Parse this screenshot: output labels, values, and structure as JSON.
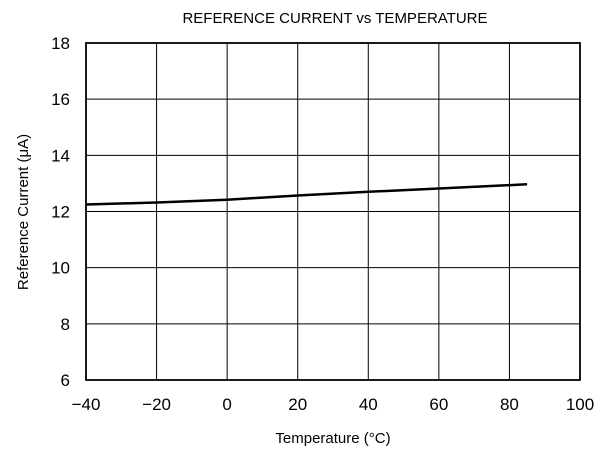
{
  "chart_data": {
    "type": "line",
    "title": "REFERENCE CURRENT vs TEMPERATURE",
    "xlabel": "Temperature (°C)",
    "ylabel": "Reference Current (μA)",
    "xlim": [
      -40,
      100
    ],
    "ylim": [
      6,
      18
    ],
    "xticks": [
      -40,
      -20,
      0,
      20,
      40,
      60,
      80,
      100
    ],
    "yticks": [
      6,
      8,
      10,
      12,
      14,
      16,
      18
    ],
    "xtick_labels": [
      "−40",
      "−20",
      "0",
      "20",
      "40",
      "60",
      "80",
      "100"
    ],
    "ytick_labels": [
      "6",
      "8",
      "10",
      "12",
      "14",
      "16",
      "18"
    ],
    "grid": true,
    "series": [
      {
        "x": [
          -40,
          -20,
          0,
          20,
          40,
          60,
          85
        ],
        "y": [
          12.25,
          12.32,
          12.42,
          12.57,
          12.7,
          12.82,
          12.97
        ]
      }
    ]
  }
}
